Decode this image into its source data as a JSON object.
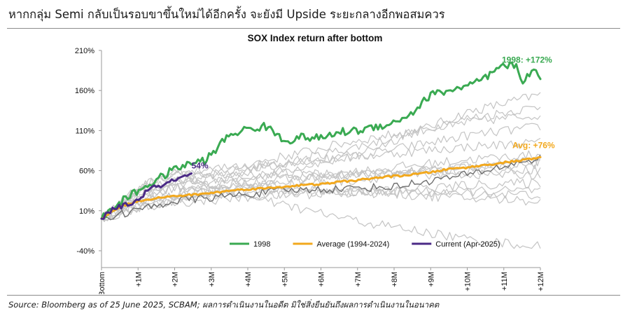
{
  "headline": "หากกลุ่ม Semi กลับเป็นรอบขาขึ้นใหม่ได้อีกครั้ง จะยังมี Upside ระยะกลางอีกพอสมควร",
  "source": "Source: Bloomberg as of 25 June 2025, SCBAM; ผลการดำเนินงานในอดีต มิใช่สิ่งยืนยันถึงผลการดำเนินงานในอนาคต",
  "colors": {
    "s1998": "#3aaa52",
    "average": "#f2a81d",
    "current": "#4b2a86",
    "grey_paths": "#c4c4c4",
    "dark_path": "#6e6e6e",
    "axis": "#9a9a9a"
  },
  "chart_data": {
    "type": "line",
    "title": "SOX Index return after bottom",
    "xlabel": "",
    "ylabel": "",
    "x_ticks": [
      "Bottom",
      "+1M",
      "+2M",
      "+3M",
      "+4M",
      "+5M",
      "+6M",
      "+7M",
      "+8M",
      "+9M",
      "+10M",
      "+11M",
      "+12M"
    ],
    "y_ticks": [
      "210%",
      "160%",
      "110%",
      "60%",
      "10%",
      "-40%"
    ],
    "y_tick_values": [
      210,
      160,
      110,
      60,
      10,
      -40
    ],
    "ylim": [
      -40,
      210
    ],
    "xlim": [
      0,
      12
    ],
    "grid": false,
    "legend_position": "bottom",
    "series": [
      {
        "name": "1998",
        "color_key": "s1998",
        "x": [
          0,
          0.5,
          1,
          1.5,
          2,
          2.5,
          2.8,
          3,
          3.5,
          4,
          4.5,
          4.8,
          5,
          5.5,
          6,
          6.5,
          7,
          7.5,
          8,
          8.5,
          9,
          9.5,
          10,
          10.5,
          10.8,
          11,
          11.3,
          11.5,
          11.8,
          12
        ],
        "y": [
          0,
          20,
          35,
          48,
          62,
          70,
          72,
          80,
          105,
          112,
          115,
          105,
          97,
          102,
          100,
          108,
          110,
          115,
          120,
          132,
          155,
          160,
          165,
          175,
          185,
          190,
          192,
          172,
          187,
          172
        ]
      },
      {
        "name": "Average (1994-2024)",
        "color_key": "average",
        "x": [
          0,
          0.5,
          1,
          1.5,
          2,
          2.5,
          3,
          3.5,
          4,
          4.5,
          5,
          5.5,
          6,
          6.5,
          7,
          7.5,
          8,
          8.5,
          9,
          9.5,
          10,
          10.5,
          11,
          11.5,
          12
        ],
        "y": [
          0,
          15,
          22,
          26,
          28,
          30,
          32,
          35,
          37,
          38,
          40,
          42,
          43,
          46,
          48,
          51,
          53,
          55,
          58,
          62,
          64,
          67,
          70,
          73,
          76
        ]
      },
      {
        "name": "Current (Apr-2025)",
        "color_key": "current",
        "x": [
          0,
          0.25,
          0.5,
          0.75,
          1,
          1.25,
          1.5,
          1.75,
          2,
          2.25,
          2.5
        ],
        "y": [
          0,
          10,
          15,
          18,
          23,
          35,
          40,
          43,
          48,
          52,
          54
        ]
      }
    ],
    "annotations": [
      {
        "series": "1998",
        "text": "1998: +172%"
      },
      {
        "series": "Average (1994-2024)",
        "text": "Avg: +76%"
      },
      {
        "series": "Current (Apr-2025)",
        "text": "54%"
      }
    ]
  }
}
